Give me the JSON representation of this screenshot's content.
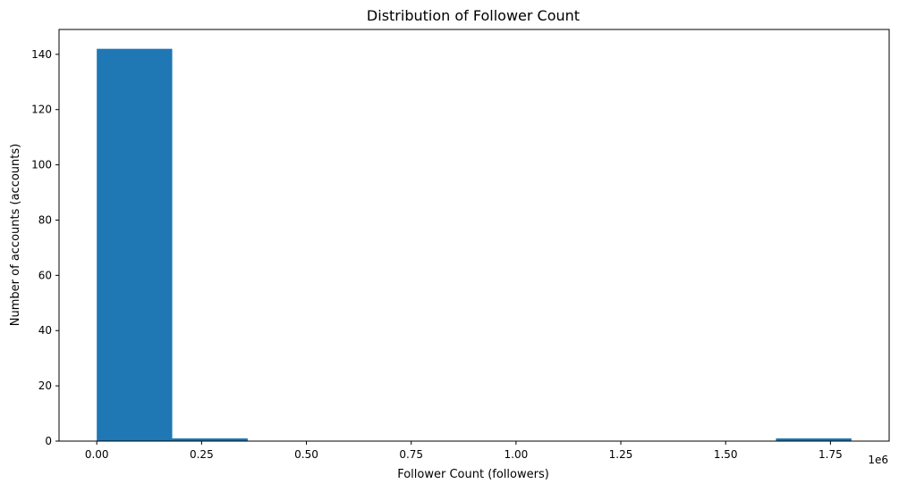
{
  "chart_data": {
    "type": "bar",
    "title": "Distribution of Follower Count",
    "xlabel": "Follower Count (followers)",
    "ylabel": "Number of accounts (accounts)",
    "x_offset_label": "1e6",
    "xlim": [
      -0.09,
      1.89
    ],
    "ylim": [
      0,
      149
    ],
    "x_ticks": [
      0,
      0.25,
      0.5,
      0.75,
      1.0,
      1.25,
      1.5,
      1.75
    ],
    "x_tick_labels": [
      "0.00",
      "0.25",
      "0.50",
      "0.75",
      "1.00",
      "1.25",
      "1.50",
      "1.75"
    ],
    "y_ticks": [
      0,
      20,
      40,
      60,
      80,
      100,
      120,
      140
    ],
    "y_tick_labels": [
      "0",
      "20",
      "40",
      "60",
      "80",
      "100",
      "120",
      "140"
    ],
    "bins": [
      {
        "start": 0.0,
        "end": 0.18,
        "count": 142
      },
      {
        "start": 0.18,
        "end": 0.36,
        "count": 1
      },
      {
        "start": 0.36,
        "end": 0.54,
        "count": 0
      },
      {
        "start": 0.54,
        "end": 0.72,
        "count": 0
      },
      {
        "start": 0.72,
        "end": 0.9,
        "count": 0
      },
      {
        "start": 0.9,
        "end": 1.08,
        "count": 0
      },
      {
        "start": 1.08,
        "end": 1.26,
        "count": 0
      },
      {
        "start": 1.26,
        "end": 1.44,
        "count": 0
      },
      {
        "start": 1.44,
        "end": 1.62,
        "count": 0
      },
      {
        "start": 1.62,
        "end": 1.8,
        "count": 1
      }
    ],
    "bar_color": "#1f77b4",
    "grid": false,
    "legend": "none"
  }
}
